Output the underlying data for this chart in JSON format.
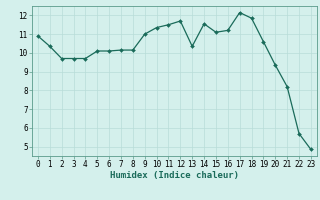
{
  "x": [
    0,
    1,
    2,
    3,
    4,
    5,
    6,
    7,
    8,
    9,
    10,
    11,
    12,
    13,
    14,
    15,
    16,
    17,
    18,
    19,
    20,
    21,
    22,
    23
  ],
  "y": [
    10.9,
    10.35,
    9.7,
    9.7,
    9.7,
    10.1,
    10.1,
    10.15,
    10.15,
    11.0,
    11.35,
    11.5,
    11.7,
    10.35,
    11.55,
    11.1,
    11.2,
    12.15,
    11.85,
    10.6,
    9.35,
    8.2,
    5.7,
    4.85
  ],
  "line_color": "#1a6b5a",
  "marker": "D",
  "markersize": 2.0,
  "linewidth": 0.9,
  "xlabel": "Humidex (Indice chaleur)",
  "xlabel_fontsize": 6.5,
  "bg_color": "#d4f0ec",
  "grid_color": "#b8ddd8",
  "ylim": [
    4.5,
    12.5
  ],
  "xlim": [
    -0.5,
    23.5
  ],
  "yticks": [
    5,
    6,
    7,
    8,
    9,
    10,
    11,
    12
  ],
  "xticks": [
    0,
    1,
    2,
    3,
    4,
    5,
    6,
    7,
    8,
    9,
    10,
    11,
    12,
    13,
    14,
    15,
    16,
    17,
    18,
    19,
    20,
    21,
    22,
    23
  ],
  "tick_fontsize": 5.5,
  "spine_color": "#5a9a8a"
}
